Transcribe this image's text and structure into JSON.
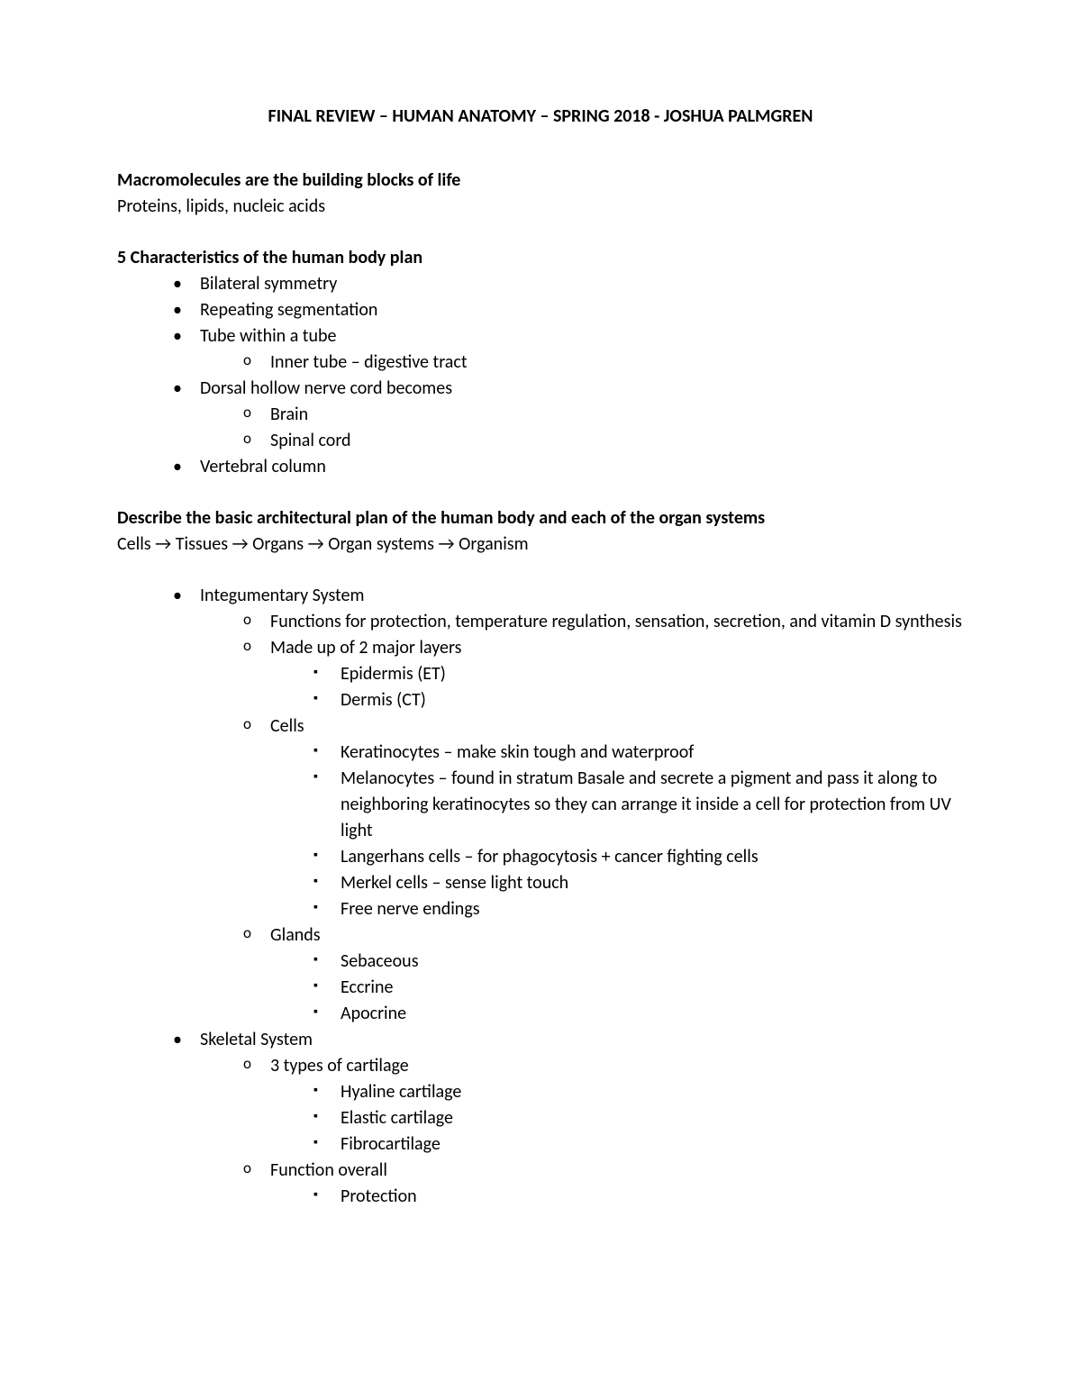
{
  "title": "FINAL REVIEW – HUMAN ANATOMY – SPRING 2018 - JOSHUA PALMGREN",
  "section1": {
    "heading": "Macromolecules are the building blocks of life",
    "text": "Proteins, lipids, nucleic acids"
  },
  "section2": {
    "heading": "5 Characteristics of the human body plan",
    "b1": "Bilateral symmetry",
    "b2": "Repeating segmentation",
    "b3": "Tube within a tube",
    "b3_1": "Inner tube – digestive tract",
    "b4": "Dorsal hollow nerve cord becomes",
    "b4_1": "Brain",
    "b4_2": "Spinal cord",
    "b5": "Vertebral column"
  },
  "section3": {
    "heading": "Describe the basic architectural plan of the human body and each of the organ systems",
    "flow": "Cells → Tissues → Organs → Organ systems → Organism"
  },
  "section4": {
    "integ": {
      "label": "Integumentary System",
      "s1": "Functions for protection, temperature regulation, sensation, secretion, and vitamin D synthesis",
      "s2": "Made up of 2 major layers",
      "s2_1": "Epidermis (ET)",
      "s2_2": "Dermis (CT)",
      "s3": "Cells",
      "s3_1": "Keratinocytes – make skin tough and waterproof",
      "s3_2": "Melanocytes – found in stratum Basale and secrete a pigment and pass it along to neighboring keratinocytes so they can arrange it inside a cell for protection from UV light",
      "s3_3": "Langerhans cells – for phagocytosis + cancer fighting cells",
      "s3_4": "Merkel cells – sense light touch",
      "s3_5": "Free nerve endings",
      "s4": "Glands",
      "s4_1": "Sebaceous",
      "s4_2": "Eccrine",
      "s4_3": "Apocrine"
    },
    "skel": {
      "label": "Skeletal System",
      "s1": "3 types of cartilage",
      "s1_1": "Hyaline cartilage",
      "s1_2": "Elastic cartilage",
      "s1_3": "Fibrocartilage",
      "s2": "Function overall",
      "s2_1": "Protection"
    }
  }
}
